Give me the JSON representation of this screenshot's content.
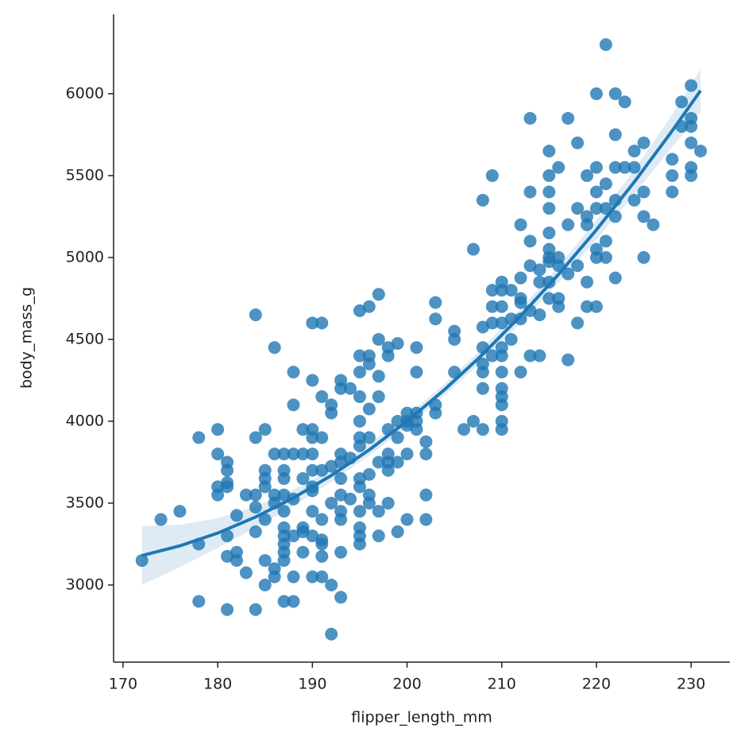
{
  "chart_data": {
    "type": "scatter",
    "xlabel": "flipper_length_mm",
    "ylabel": "body_mass_g",
    "color": "#1f77b4",
    "xlim": [
      169.0,
      234.1
    ],
    "ylim": [
      2529,
      6485
    ],
    "xticks": [
      170,
      180,
      190,
      200,
      210,
      220,
      230
    ],
    "yticks": [
      3000,
      3500,
      4000,
      4500,
      5000,
      5500,
      6000
    ],
    "x": [
      172,
      174,
      176,
      178,
      178,
      178,
      180,
      180,
      180,
      180,
      181,
      181,
      181,
      181,
      181,
      181,
      181,
      182,
      182,
      182,
      183,
      183,
      184,
      184,
      184,
      184,
      184,
      184,
      185,
      185,
      185,
      185,
      185,
      185,
      185,
      186,
      186,
      186,
      186,
      186,
      186,
      187,
      187,
      187,
      187,
      187,
      187,
      187,
      187,
      187,
      187,
      187,
      188,
      188,
      188,
      188,
      188,
      188,
      188,
      189,
      189,
      189,
      189,
      189,
      189,
      190,
      190,
      190,
      190,
      190,
      190,
      190,
      190,
      190,
      190,
      190,
      191,
      191,
      191,
      191,
      191,
      191,
      191,
      191,
      191,
      192,
      192,
      192,
      192,
      192,
      192,
      193,
      193,
      193,
      193,
      193,
      193,
      193,
      193,
      193,
      193,
      194,
      194,
      194,
      195,
      195,
      195,
      195,
      195,
      195,
      195,
      195,
      195,
      195,
      195,
      195,
      195,
      196,
      196,
      196,
      196,
      196,
      196,
      196,
      196,
      197,
      197,
      197,
      197,
      197,
      197,
      197,
      198,
      198,
      198,
      198,
      198,
      198,
      198,
      199,
      199,
      199,
      199,
      199,
      200,
      200,
      200,
      200,
      200,
      201,
      201,
      201,
      201,
      201,
      202,
      202,
      202,
      202,
      203,
      203,
      203,
      203,
      205,
      205,
      205,
      206,
      207,
      207,
      208,
      208,
      208,
      208,
      208,
      208,
      208,
      209,
      209,
      209,
      209,
      209,
      210,
      210,
      210,
      210,
      210,
      210,
      210,
      210,
      210,
      210,
      210,
      210,
      211,
      211,
      211,
      212,
      212,
      212,
      212,
      212,
      212,
      213,
      213,
      213,
      213,
      213,
      213,
      214,
      214,
      214,
      214,
      215,
      215,
      215,
      215,
      215,
      215,
      215,
      215,
      215,
      215,
      216,
      216,
      216,
      216,
      216,
      217,
      217,
      217,
      217,
      218,
      218,
      218,
      218,
      219,
      219,
      219,
      219,
      219,
      220,
      220,
      220,
      220,
      220,
      220,
      220,
      221,
      221,
      221,
      221,
      221,
      222,
      222,
      222,
      222,
      222,
      222,
      223,
      223,
      224,
      224,
      224,
      225,
      225,
      225,
      225,
      226,
      228,
      228,
      228,
      229,
      229,
      230,
      230,
      230,
      230,
      230,
      230,
      231
    ],
    "values": [
      3150,
      3400,
      3450,
      3250,
      2900,
      3900,
      3950,
      3800,
      3600,
      3550,
      3750,
      3700,
      3625,
      3600,
      3300,
      3175,
      2850,
      3200,
      3150,
      3425,
      3550,
      3075,
      4650,
      3900,
      3550,
      3475,
      3325,
      2850,
      3950,
      3700,
      3650,
      3600,
      3400,
      3150,
      3000,
      4450,
      3800,
      3550,
      3500,
      3100,
      3050,
      3800,
      3700,
      3650,
      3550,
      3450,
      3350,
      3300,
      3250,
      3200,
      3150,
      2900,
      4300,
      4100,
      3800,
      3525,
      3300,
      3050,
      2900,
      3950,
      3800,
      3650,
      3350,
      3325,
      3200,
      4600,
      4250,
      3950,
      3900,
      3800,
      3700,
      3600,
      3575,
      3450,
      3300,
      3050,
      4600,
      4150,
      3900,
      3700,
      3400,
      3275,
      3250,
      3175,
      3050,
      4100,
      4050,
      3725,
      3500,
      3000,
      2700,
      4250,
      4200,
      3800,
      3750,
      3650,
      3550,
      3450,
      3400,
      3200,
      2925,
      4200,
      3775,
      3525,
      4675,
      4400,
      4300,
      4150,
      4000,
      3900,
      3850,
      3650,
      3600,
      3450,
      3350,
      3300,
      3250,
      4700,
      4400,
      4350,
      4075,
      3900,
      3675,
      3550,
      3500,
      4775,
      4500,
      4275,
      4150,
      3750,
      3450,
      3300,
      4450,
      4400,
      3950,
      3800,
      3750,
      3700,
      3500,
      4475,
      4000,
      3900,
      3750,
      3325,
      4050,
      4000,
      3975,
      3800,
      3400,
      4450,
      4300,
      4050,
      4000,
      3950,
      3875,
      3800,
      3550,
      3400,
      4725,
      4625,
      4100,
      4050,
      4550,
      4500,
      4300,
      3950,
      5050,
      4000,
      5350,
      4575,
      4450,
      4350,
      4300,
      4200,
      3950,
      5500,
      4800,
      4700,
      4600,
      4400,
      4850,
      4800,
      4700,
      4600,
      4450,
      4400,
      4300,
      4200,
      4150,
      4100,
      4000,
      3950,
      4800,
      4625,
      4500,
      5200,
      4875,
      4750,
      4725,
      4625,
      4300,
      5850,
      5400,
      5100,
      4950,
      4675,
      4400,
      4925,
      4850,
      4650,
      4400,
      5650,
      5500,
      5400,
      5300,
      5150,
      5050,
      5000,
      4975,
      4850,
      4750,
      5550,
      5000,
      4950,
      4750,
      4700,
      5850,
      5200,
      4900,
      4375,
      5700,
      5300,
      4950,
      4600,
      5500,
      5250,
      5200,
      4850,
      4700,
      6000,
      5550,
      5400,
      5300,
      5050,
      5000,
      4700,
      6300,
      5450,
      5300,
      5100,
      5000,
      6000,
      5750,
      5550,
      5350,
      5250,
      4875,
      5950,
      5550,
      5650,
      5550,
      5350,
      5700,
      5400,
      5250,
      5000,
      5200,
      5600,
      5500,
      5400,
      5950,
      5800,
      6050,
      5850,
      5800,
      5700,
      5550,
      5500,
      5650
    ],
    "fit": {
      "x": [
        172,
        176,
        180,
        184,
        188,
        192,
        196,
        200,
        204,
        208,
        212,
        216,
        220,
        224,
        228,
        231
      ],
      "values": [
        3180,
        3239,
        3317,
        3415,
        3532,
        3669,
        3825,
        4000,
        4195,
        4409,
        4644,
        4897,
        5169,
        5461,
        5773,
        6019
      ],
      "ci_lower": [
        3000,
        3109,
        3227,
        3350,
        3482,
        3629,
        3790,
        3965,
        4160,
        4369,
        4599,
        4847,
        5109,
        5386,
        5673,
        5889
      ],
      "ci_upper": [
        3360,
        3369,
        3407,
        3480,
        3582,
        3709,
        3860,
        4035,
        4230,
        4449,
        4689,
        4947,
        5229,
        5536,
        5873,
        6149
      ]
    }
  }
}
